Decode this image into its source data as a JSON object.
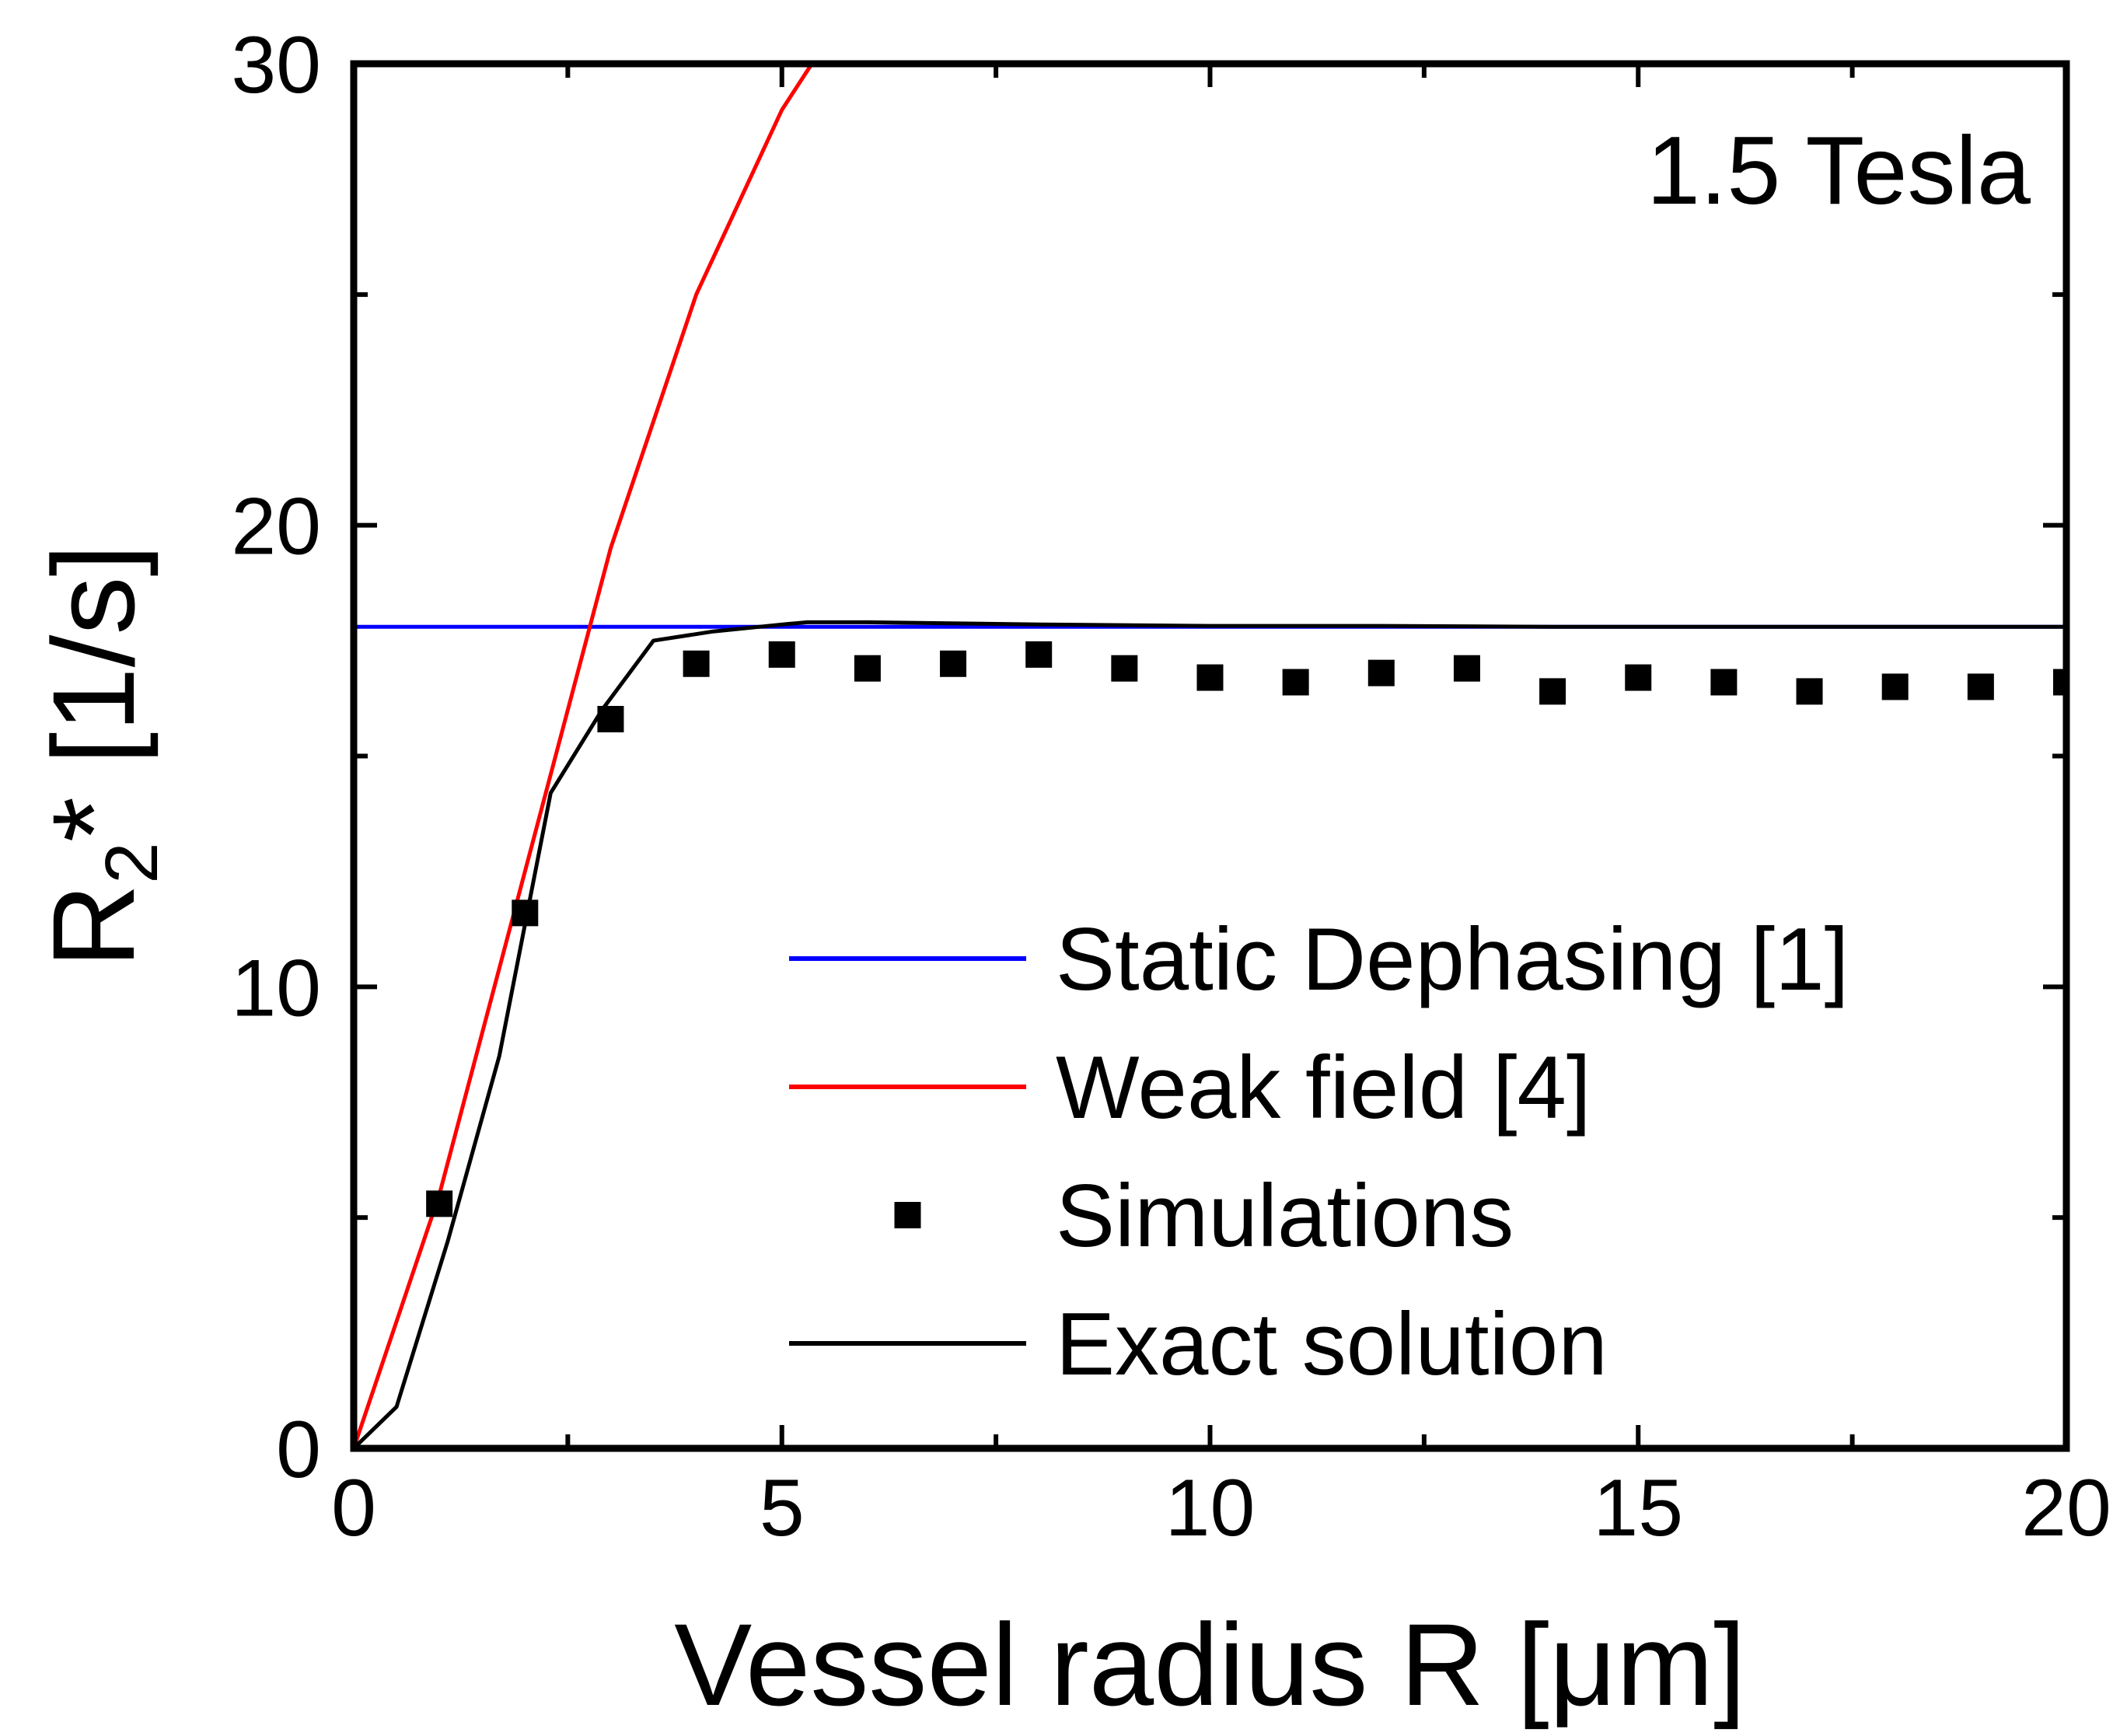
{
  "chart_data": {
    "type": "line",
    "annotation": "1.5 Tesla",
    "xlabel": "Vessel radius R [μm]",
    "ylabel": {
      "main": "R",
      "sub": "2",
      "rest": "* [1/s]"
    },
    "xlim": [
      0,
      20
    ],
    "ylim": [
      0,
      30
    ],
    "xticks": [
      0,
      5,
      10,
      15,
      20
    ],
    "yticks": [
      0,
      10,
      20,
      30
    ],
    "grid": false,
    "legend_position": "bottom-right",
    "series": [
      {
        "name": "Static Dephasing [1]",
        "kind": "line",
        "color": "#0000ff",
        "x": [
          0,
          20
        ],
        "y": [
          17.8,
          17.8
        ]
      },
      {
        "name": "Weak field [4]",
        "kind": "line",
        "color": "#ff0000",
        "x": [
          0,
          1,
          2,
          3,
          4,
          5,
          5.35
        ],
        "y": [
          0,
          5.5,
          12.5,
          19.5,
          25,
          29,
          30
        ]
      },
      {
        "name": "Simulations",
        "kind": "scatter",
        "color": "#000000",
        "x": [
          1,
          2,
          3,
          4,
          5,
          6,
          7,
          8,
          9,
          10,
          11,
          12,
          13,
          14,
          15,
          16,
          17,
          18,
          19,
          20
        ],
        "y": [
          5.3,
          11.6,
          15.8,
          17.0,
          17.2,
          16.9,
          17.0,
          17.2,
          16.9,
          16.7,
          16.6,
          16.8,
          16.9,
          16.4,
          16.7,
          16.6,
          16.4,
          16.5,
          16.5,
          16.6
        ]
      },
      {
        "name": "Exact solution",
        "kind": "line",
        "color": "#000000",
        "x": [
          0,
          0.5,
          1.1,
          1.7,
          2.3,
          2.9,
          3.5,
          4.2,
          5.0,
          5.3,
          6,
          8,
          10,
          12,
          14,
          16,
          18,
          20
        ],
        "y": [
          0,
          0.9,
          4.5,
          8.5,
          14.2,
          16.0,
          17.5,
          17.7,
          17.85,
          17.9,
          17.9,
          17.85,
          17.82,
          17.82,
          17.8,
          17.8,
          17.8,
          17.8
        ]
      }
    ]
  }
}
